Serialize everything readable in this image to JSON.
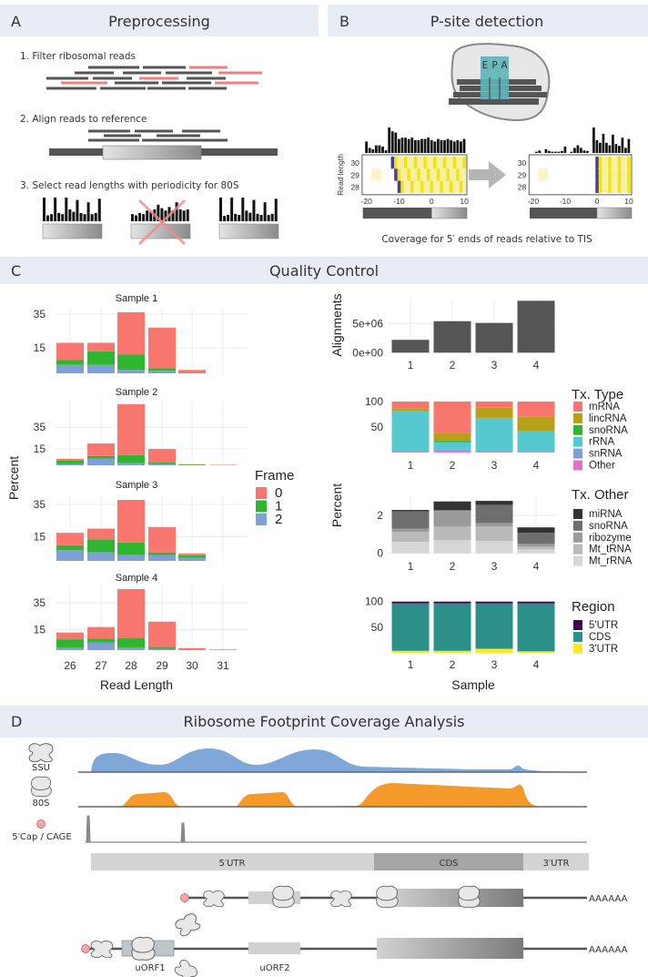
{
  "panels": {
    "A": {
      "letter": "A",
      "title": "Preprocessing",
      "steps": [
        "1. Filter ribosomal reads",
        "2. Align reads to reference",
        "3. Select read lengths with periodicity for 80S"
      ]
    },
    "B": {
      "letter": "B",
      "title": "P-site detection",
      "sites": [
        "E",
        "P",
        "A"
      ],
      "heatmap_ylabel": "Read length",
      "heatmap_yticks": [
        "30",
        "29",
        "28"
      ],
      "heatmap_xticks": [
        "-20",
        "-10",
        "0",
        "10"
      ],
      "caption": "Coverage for 5′ ends of reads relative to TIS"
    },
    "C": {
      "letter": "C",
      "title": "Quality Control"
    },
    "D": {
      "letter": "D",
      "title": "Ribosome Footprint Coverage Analysis",
      "tracks": [
        "SSU",
        "80S",
        "5′Cap / CAGE"
      ],
      "regions": [
        "5′UTR",
        "CDS",
        "3′UTR"
      ],
      "polyA": "AAAAAA",
      "uorfs": [
        "uORF1",
        "uORF2"
      ],
      "colors": {
        "ssu": "#7fa7d8",
        "80s": "#f39a2b",
        "cap": "#f4a6a6"
      }
    }
  },
  "chart_data": [
    {
      "type": "bar",
      "stacked": true,
      "facets": [
        "Sample 1",
        "Sample 2",
        "Sample 3",
        "Sample 4"
      ],
      "categories": [
        "26",
        "27",
        "28",
        "29",
        "30",
        "31"
      ],
      "xlabel": "Read Length",
      "ylabel": "Percent",
      "yticks": [
        15,
        35
      ],
      "legend_title": "Frame",
      "legend_position": "right",
      "series_names": [
        "0",
        "1",
        "2"
      ],
      "colors": [
        "#f8766d",
        "#2fb52f",
        "#7f9fd6"
      ],
      "grid": true,
      "data": [
        {
          "0": [
            10,
            5,
            25,
            24,
            2,
            0
          ],
          "1": [
            3,
            8,
            9,
            1.5,
            0,
            0
          ],
          "2": [
            5,
            5,
            2,
            1.5,
            0,
            0
          ]
        },
        {
          "0": [
            1.5,
            11.5,
            46.6,
            12.5,
            0.5,
            0.3
          ],
          "1": [
            3.5,
            2.5,
            7.4,
            1.5,
            0.5,
            0.2
          ],
          "2": [
            1,
            6,
            2,
            1,
            0,
            0
          ]
        },
        {
          "0": [
            7.7,
            6.6,
            26.4,
            15.8,
            1.1,
            0
          ],
          "1": [
            3.1,
            8,
            7.7,
            1.7,
            1.5,
            0
          ],
          "2": [
            6.6,
            5.4,
            3.7,
            3.5,
            2,
            0
          ]
        },
        {
          "0": [
            5,
            8.5,
            36,
            18.7,
            1.5,
            0.5
          ],
          "1": [
            6,
            3,
            7,
            1.3,
            0,
            0
          ],
          "2": [
            2,
            5.5,
            2,
            1,
            0,
            0
          ]
        }
      ]
    },
    {
      "type": "bar",
      "categories": [
        "1",
        "2",
        "3",
        "4"
      ],
      "values": [
        2200000,
        5400000,
        5100000,
        8900000
      ],
      "ylabel": "Alignments",
      "yticks": [
        "0e+00",
        "5e+06"
      ],
      "ytick_values": [
        0,
        5000000
      ],
      "color": "#555555",
      "grid": true
    },
    {
      "type": "bar",
      "stacked": true,
      "categories": [
        "1",
        "2",
        "3",
        "4"
      ],
      "yticks": [
        50,
        100
      ],
      "legend_title": "Tx. Type",
      "legend_position": "right",
      "series": [
        {
          "name": "mRNA",
          "color": "#f8766d",
          "values": [
            13,
            61,
            12,
            30
          ]
        },
        {
          "name": "lincRNA",
          "color": "#b79f1a",
          "values": [
            6,
            16,
            20,
            28
          ]
        },
        {
          "name": "snoRNA",
          "color": "#2fb52f",
          "values": [
            0.3,
            3,
            0.3,
            0.3
          ]
        },
        {
          "name": "rRNA",
          "color": "#56c8d0",
          "values": [
            79,
            14,
            66,
            40.4
          ]
        },
        {
          "name": "snRNA",
          "color": "#7f9fd6",
          "values": [
            0.7,
            3,
            0.7,
            0.3
          ]
        },
        {
          "name": "Other",
          "color": "#e070c8",
          "values": [
            1,
            3,
            1,
            1
          ]
        }
      ]
    },
    {
      "type": "bar",
      "stacked": true,
      "categories": [
        "1",
        "2",
        "3",
        "4"
      ],
      "ylabel": "Percent",
      "yticks": [
        0,
        2
      ],
      "legend_title": "Tx. Other",
      "legend_position": "right",
      "grid": true,
      "series": [
        {
          "name": "miRNA",
          "color": "#333333",
          "values": [
            0.08,
            0.45,
            0.21,
            0.29
          ]
        },
        {
          "name": "snoRNA",
          "color": "#6e6e6e",
          "values": [
            0.91,
            0.05,
            0.96,
            0.58
          ]
        },
        {
          "name": "ribozyme",
          "color": "#9a9a9a",
          "values": [
            0.16,
            0.83,
            0.19,
            0.13
          ]
        },
        {
          "name": "Mt_tRNA",
          "color": "#b9b9b9",
          "values": [
            0.53,
            0.72,
            0.75,
            0.16
          ]
        },
        {
          "name": "Mt_rRNA",
          "color": "#d6d6d6",
          "values": [
            0.61,
            0.69,
            0.66,
            0.21
          ]
        }
      ]
    },
    {
      "type": "bar",
      "stacked": true,
      "categories": [
        "1",
        "2",
        "3",
        "4"
      ],
      "xlabel": "Sample",
      "yticks": [
        50,
        100
      ],
      "legend_title": "Region",
      "legend_position": "right",
      "series": [
        {
          "name": "5'UTR",
          "color": "#440154",
          "values": [
            3.5,
            3.5,
            3.5,
            3.5
          ]
        },
        {
          "name": "CDS",
          "color": "#2a9089",
          "values": [
            92.5,
            92.5,
            88.5,
            93.5
          ]
        },
        {
          "name": "3'UTR",
          "color": "#fde725",
          "values": [
            4,
            4,
            8,
            3
          ]
        }
      ]
    }
  ]
}
